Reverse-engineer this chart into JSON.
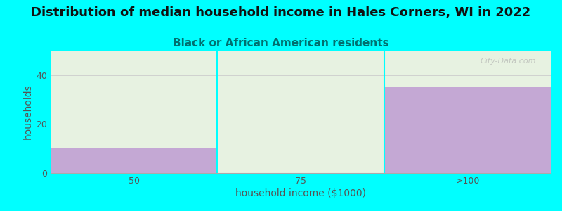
{
  "title": "Distribution of median household income in Hales Corners, WI in 2022",
  "subtitle": "Black or African American residents",
  "xlabel": "household income ($1000)",
  "ylabel": "households",
  "background_color": "#00FFFF",
  "plot_bg_color": "#FFFFFF",
  "bar_color": "#C4A8D4",
  "categories": [
    "50",
    "75",
    ">100"
  ],
  "values": [
    10,
    0,
    35
  ],
  "ylim": [
    0,
    50
  ],
  "yticks": [
    0,
    20,
    40
  ],
  "title_fontsize": 13,
  "subtitle_fontsize": 11,
  "axis_label_fontsize": 10,
  "tick_fontsize": 9,
  "title_color": "#111111",
  "subtitle_color": "#007070",
  "axis_label_color": "#555555",
  "tick_color": "#555555",
  "watermark": "City-Data.com",
  "green_overlay_color": "#E0EED8",
  "green_overlay_alpha": 0.75
}
